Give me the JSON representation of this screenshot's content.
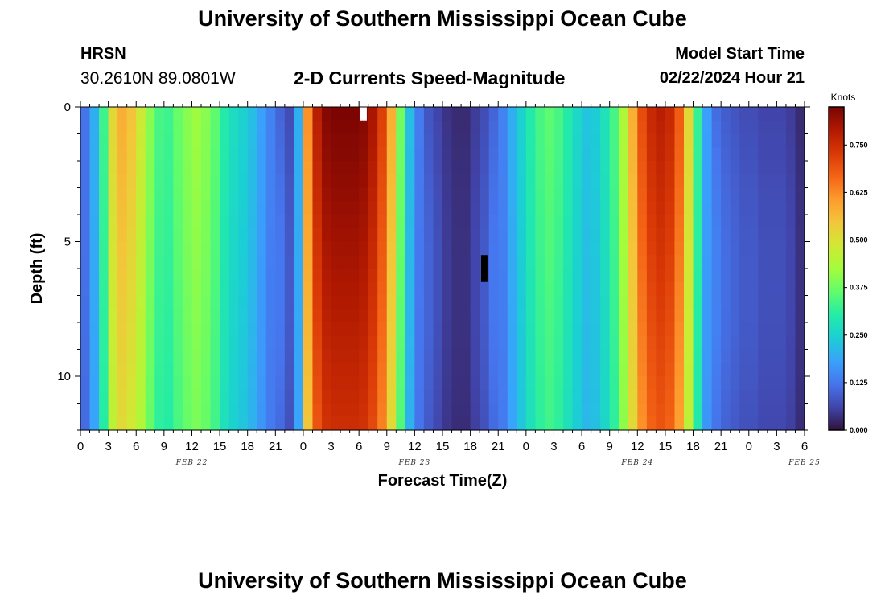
{
  "header": {
    "title": "University of Southern Mississippi Ocean Cube",
    "station": "HRSN",
    "coordinates": "30.2610N  89.0801W",
    "chart_title": "2-D Currents Speed-Magnitude",
    "model_start_label": "Model Start Time",
    "model_start_value": "02/22/2024 Hour 21"
  },
  "footer": {
    "title": "University of Southern Mississippi Ocean Cube"
  },
  "chart_data": {
    "type": "heatmap",
    "title": "2-D Currents Speed-Magnitude",
    "xlabel": "Forecast Time(Z)",
    "ylabel": "Depth (ft)",
    "colorbar_label": "Knots",
    "colorbar_ticks": [
      "0.000",
      "0.125",
      "0.250",
      "0.375",
      "0.500",
      "0.625",
      "0.750"
    ],
    "colorbar_range": [
      0,
      0.85
    ],
    "x_tick_labels": [
      "0",
      "3",
      "6",
      "9",
      "12",
      "15",
      "18",
      "21",
      "0",
      "3",
      "6",
      "9",
      "12",
      "15",
      "18",
      "21",
      "0",
      "3",
      "6",
      "9",
      "12",
      "15",
      "18",
      "21",
      "0",
      "3",
      "6"
    ],
    "date_labels": [
      {
        "label": "FEB 22",
        "hour": 12
      },
      {
        "label": "FEB 23",
        "hour": 36
      },
      {
        "label": "FEB 24",
        "hour": 60
      },
      {
        "label": "FEB 25",
        "hour": 78
      }
    ],
    "y_tick_labels": [
      "0",
      "5",
      "10"
    ],
    "ylim": [
      12,
      0
    ],
    "xlim": [
      0,
      78
    ],
    "speed_profile": [
      {
        "hour": 0,
        "speed": 0.12
      },
      {
        "hour": 1,
        "speed": 0.2
      },
      {
        "hour": 2,
        "speed": 0.33
      },
      {
        "hour": 3,
        "speed": 0.52
      },
      {
        "hour": 4,
        "speed": 0.58
      },
      {
        "hour": 5,
        "speed": 0.55
      },
      {
        "hour": 6,
        "speed": 0.48
      },
      {
        "hour": 7,
        "speed": 0.4
      },
      {
        "hour": 8,
        "speed": 0.34
      },
      {
        "hour": 9,
        "speed": 0.33
      },
      {
        "hour": 10,
        "speed": 0.37
      },
      {
        "hour": 11,
        "speed": 0.4
      },
      {
        "hour": 12,
        "speed": 0.42
      },
      {
        "hour": 13,
        "speed": 0.4
      },
      {
        "hour": 14,
        "speed": 0.36
      },
      {
        "hour": 15,
        "speed": 0.3
      },
      {
        "hour": 16,
        "speed": 0.27
      },
      {
        "hour": 17,
        "speed": 0.25
      },
      {
        "hour": 18,
        "speed": 0.22
      },
      {
        "hour": 19,
        "speed": 0.18
      },
      {
        "hour": 20,
        "speed": 0.14
      },
      {
        "hour": 21,
        "speed": 0.1
      },
      {
        "hour": 22,
        "speed": 0.07
      },
      {
        "hour": 23,
        "speed": 0.2
      },
      {
        "hour": 24,
        "speed": 0.62
      },
      {
        "hour": 25,
        "speed": 0.78
      },
      {
        "hour": 26,
        "speed": 0.84
      },
      {
        "hour": 27,
        "speed": 0.85
      },
      {
        "hour": 28,
        "speed": 0.85
      },
      {
        "hour": 29,
        "speed": 0.85
      },
      {
        "hour": 30,
        "speed": 0.84
      },
      {
        "hour": 31,
        "speed": 0.8
      },
      {
        "hour": 32,
        "speed": 0.72
      },
      {
        "hour": 33,
        "speed": 0.58
      },
      {
        "hour": 34,
        "speed": 0.38
      },
      {
        "hour": 35,
        "speed": 0.22
      },
      {
        "hour": 36,
        "speed": 0.13
      },
      {
        "hour": 37,
        "speed": 0.08
      },
      {
        "hour": 38,
        "speed": 0.06
      },
      {
        "hour": 39,
        "speed": 0.04
      },
      {
        "hour": 40,
        "speed": 0.03
      },
      {
        "hour": 41,
        "speed": 0.03
      },
      {
        "hour": 42,
        "speed": 0.05
      },
      {
        "hour": 43,
        "speed": 0.07
      },
      {
        "hour": 44,
        "speed": 0.1
      },
      {
        "hour": 45,
        "speed": 0.14
      },
      {
        "hour": 46,
        "speed": 0.2
      },
      {
        "hour": 47,
        "speed": 0.25
      },
      {
        "hour": 48,
        "speed": 0.3
      },
      {
        "hour": 49,
        "speed": 0.34
      },
      {
        "hour": 50,
        "speed": 0.36
      },
      {
        "hour": 51,
        "speed": 0.34
      },
      {
        "hour": 52,
        "speed": 0.3
      },
      {
        "hour": 53,
        "speed": 0.26
      },
      {
        "hour": 54,
        "speed": 0.23
      },
      {
        "hour": 55,
        "speed": 0.24
      },
      {
        "hour": 56,
        "speed": 0.28
      },
      {
        "hour": 57,
        "speed": 0.34
      },
      {
        "hour": 58,
        "speed": 0.44
      },
      {
        "hour": 59,
        "speed": 0.58
      },
      {
        "hour": 60,
        "speed": 0.7
      },
      {
        "hour": 61,
        "speed": 0.76
      },
      {
        "hour": 62,
        "speed": 0.78
      },
      {
        "hour": 63,
        "speed": 0.76
      },
      {
        "hour": 64,
        "speed": 0.68
      },
      {
        "hour": 65,
        "speed": 0.52
      },
      {
        "hour": 66,
        "speed": 0.32
      },
      {
        "hour": 67,
        "speed": 0.18
      },
      {
        "hour": 68,
        "speed": 0.11
      },
      {
        "hour": 69,
        "speed": 0.09
      },
      {
        "hour": 70,
        "speed": 0.08
      },
      {
        "hour": 71,
        "speed": 0.07
      },
      {
        "hour": 72,
        "speed": 0.07
      },
      {
        "hour": 73,
        "speed": 0.06
      },
      {
        "hour": 74,
        "speed": 0.06
      },
      {
        "hour": 75,
        "speed": 0.06
      },
      {
        "hour": 76,
        "speed": 0.05
      },
      {
        "hour": 77,
        "speed": 0.03
      }
    ],
    "depth_profile_note": "",
    "missing_cells": [
      {
        "hour": 30,
        "depth_from": 0,
        "depth_to": 0.5,
        "color": "#ffffff"
      },
      {
        "hour": 43,
        "depth_from": 5.5,
        "depth_to": 6.5,
        "color": "#000000"
      }
    ],
    "colors": {
      "colormap": [
        "#30123b",
        "#4145ab",
        "#4675ed",
        "#39a2fc",
        "#1bcfd4",
        "#24eca6",
        "#61fc6c",
        "#a4fc3b",
        "#d1e834",
        "#f3c63a",
        "#fe9b2d",
        "#f36315",
        "#d93806",
        "#b11901",
        "#7a0403"
      ],
      "axis": "#000000",
      "background": "#ffffff"
    }
  }
}
